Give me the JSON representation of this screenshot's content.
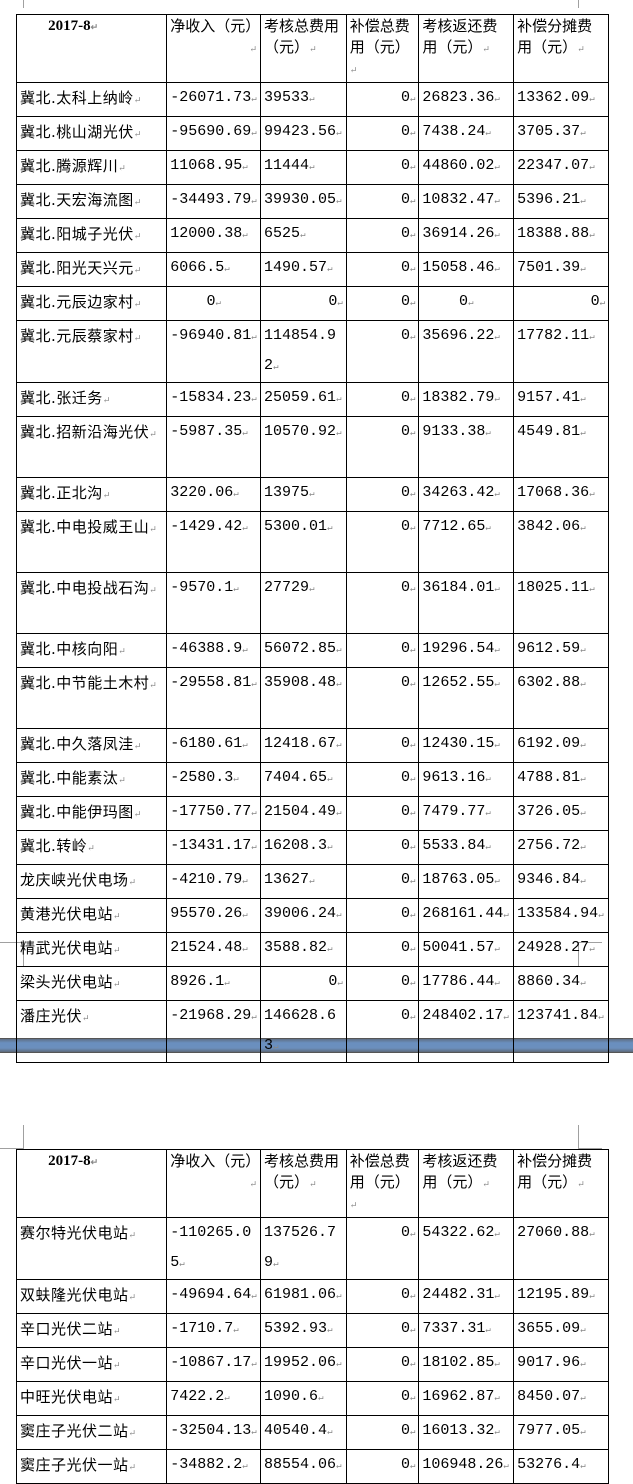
{
  "tables": [
    {
      "header": [
        "2017-8",
        "净收入（元）",
        "考核总费用（元）",
        "补偿总费用（元）",
        "考核返还费用（元）",
        "补偿分摊费用（元）"
      ],
      "rows": [
        [
          "冀北.太科上纳岭",
          "-26071.73",
          "39533",
          "0",
          "26823.36",
          "13362.09"
        ],
        [
          "冀北.桃山湖光伏",
          "-95690.69",
          "99423.56",
          "0",
          "7438.24",
          "3705.37"
        ],
        [
          "冀北.腾源辉川",
          "11068.95",
          "11444",
          "0",
          "44860.02",
          "22347.07"
        ],
        [
          "冀北.天宏海流图",
          "-34493.79",
          "39930.05",
          "0",
          "10832.47",
          "5396.21"
        ],
        [
          "冀北.阳城子光伏",
          "12000.38",
          "6525",
          "0",
          "36914.26",
          "18388.88"
        ],
        [
          "冀北.阳光天兴元",
          "6066.5",
          "1490.57",
          "0",
          "15058.46",
          "7501.39"
        ],
        [
          "冀北.元辰边家村",
          "0",
          "0",
          "0",
          "0",
          "0"
        ],
        [
          "冀北.元辰蔡家村",
          "-96940.81",
          "114854.92",
          "0",
          "35696.22",
          "17782.11"
        ],
        [
          "冀北.张迁务",
          "-15834.23",
          "25059.61",
          "0",
          "18382.79",
          "9157.41"
        ],
        [
          "冀北.招新沿海光伏",
          "-5987.35",
          "10570.92",
          "0",
          "9133.38",
          "4549.81"
        ],
        [
          "冀北.正北沟",
          "3220.06",
          "13975",
          "0",
          "34263.42",
          "17068.36"
        ],
        [
          "冀北.中电投威王山",
          "-1429.42",
          "5300.01",
          "0",
          "7712.65",
          "3842.06"
        ],
        [
          "冀北.中电投战石沟",
          "-9570.1",
          "27729",
          "0",
          "36184.01",
          "18025.11"
        ],
        [
          "冀北.中核向阳",
          "-46388.9",
          "56072.85",
          "0",
          "19296.54",
          "9612.59"
        ],
        [
          "冀北.中节能土木村",
          "-29558.81",
          "35908.48",
          "0",
          "12652.55",
          "6302.88"
        ],
        [
          "冀北.中久落凤洼",
          "-6180.61",
          "12418.67",
          "0",
          "12430.15",
          "6192.09"
        ],
        [
          "冀北.中能素汰",
          "-2580.3",
          "7404.65",
          "0",
          "9613.16",
          "4788.81"
        ],
        [
          "冀北.中能伊玛图",
          "-17750.77",
          "21504.49",
          "0",
          "7479.77",
          "3726.05"
        ],
        [
          "冀北.转岭",
          "-13431.17",
          "16208.3",
          "0",
          "5533.84",
          "2756.72"
        ],
        [
          "龙庆峡光伏电场",
          "-4210.79",
          "13627",
          "0",
          "18763.05",
          "9346.84"
        ],
        [
          "黄港光伏电站",
          "95570.26",
          "39006.24",
          "0",
          "268161.44",
          "133584.94"
        ],
        [
          "精武光伏电站",
          "21524.48",
          "3588.82",
          "0",
          "50041.57",
          "24928.27"
        ],
        [
          "梁头光伏电站",
          "8926.1",
          "0",
          "0",
          "17786.44",
          "8860.34"
        ],
        [
          "潘庄光伏",
          "-21968.29",
          "146628.63",
          "0",
          "248402.17",
          "123741.84"
        ]
      ]
    },
    {
      "header": [
        "2017-8",
        "净收入（元）",
        "考核总费用（元）",
        "补偿总费用（元）",
        "考核返还费用（元）",
        "补偿分摊费用（元）"
      ],
      "rows": [
        [
          "赛尔特光伏电站",
          "-110265.05",
          "137526.79",
          "0",
          "54322.62",
          "27060.88"
        ],
        [
          "双蚨隆光伏电站",
          "-49694.64",
          "61981.06",
          "0",
          "24482.31",
          "12195.89"
        ],
        [
          "辛口光伏二站",
          "-1710.7",
          "5392.93",
          "0",
          "7337.31",
          "3655.09"
        ],
        [
          "辛口光伏一站",
          "-10867.17",
          "19952.06",
          "0",
          "18102.85",
          "9017.96"
        ],
        [
          "中旺光伏电站",
          "7422.2",
          "1090.6",
          "0",
          "16962.87",
          "8450.07"
        ],
        [
          "窦庄子光伏二站",
          "-32504.13",
          "40540.4",
          "0",
          "16013.32",
          "7977.05"
        ],
        [
          "窦庄子光伏一站",
          "-34882.2",
          "88554.06",
          "0",
          "106948.26",
          "53276.4"
        ]
      ]
    }
  ],
  "colors": {
    "page_break": "#6a8fbf",
    "border": "#000000",
    "format_mark": "#888888"
  }
}
